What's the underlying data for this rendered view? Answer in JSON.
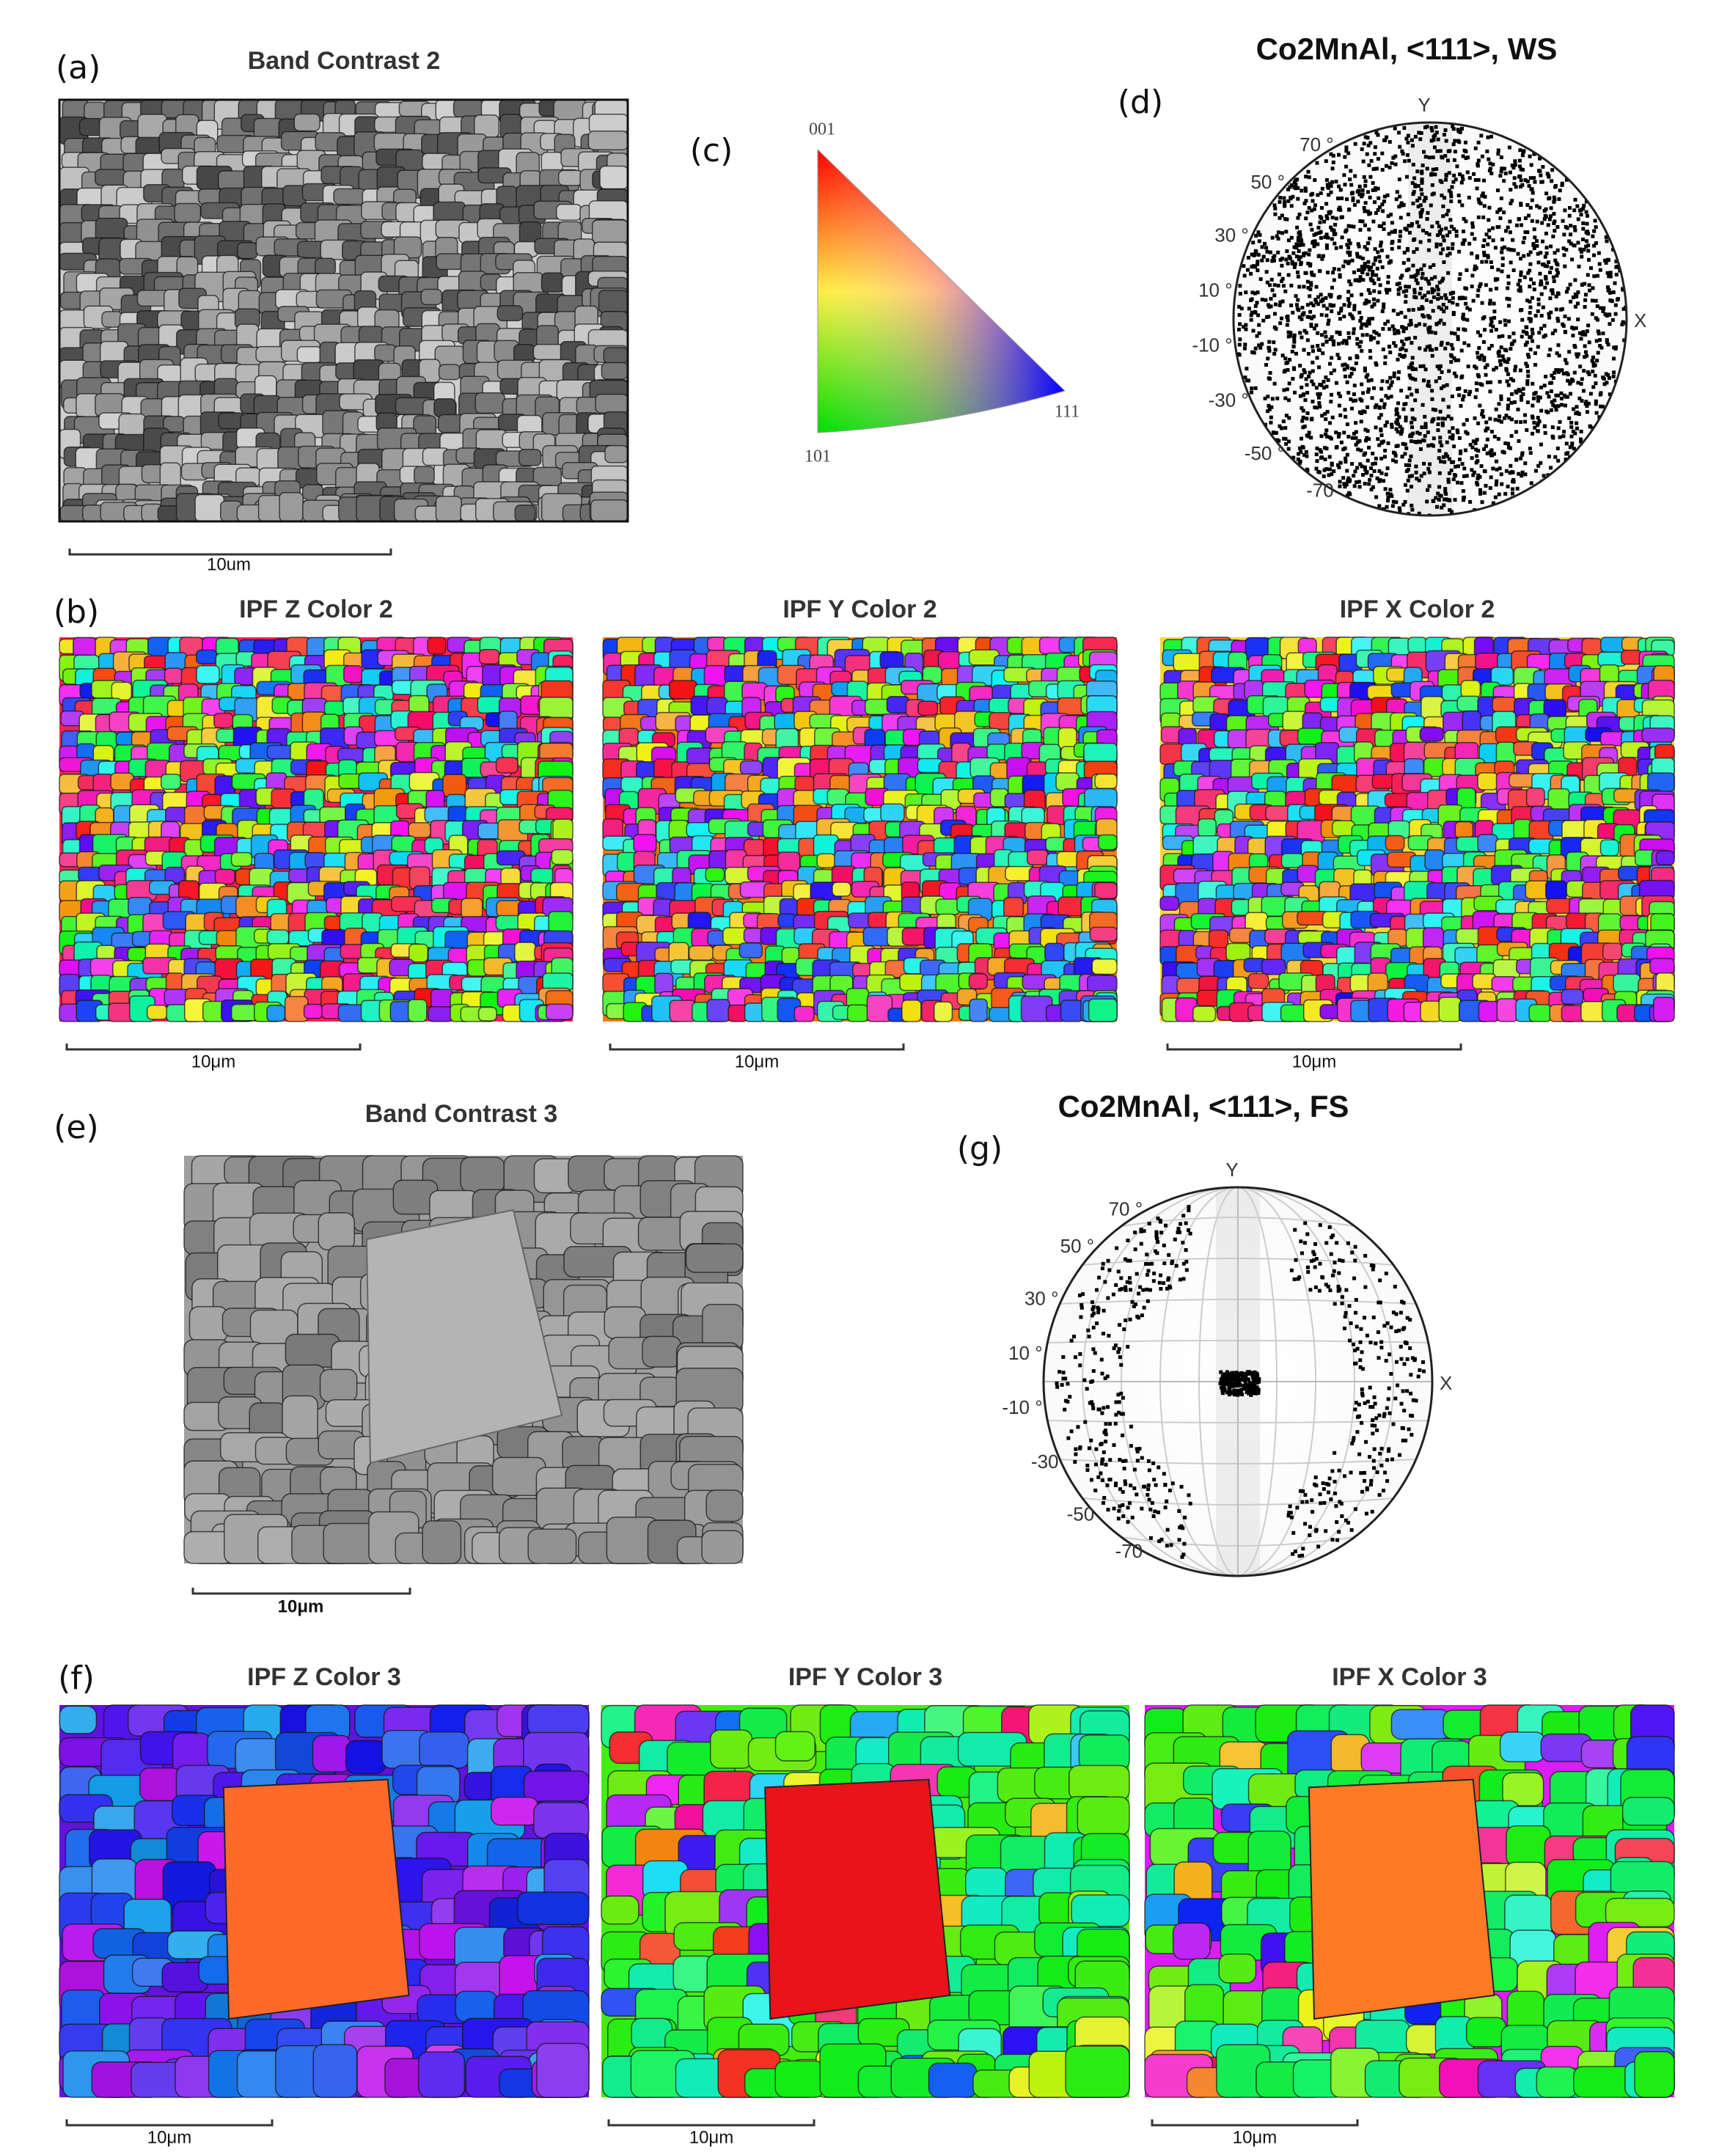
{
  "panels": {
    "a": {
      "label": "(a)",
      "title": "Band Contrast 2",
      "scale_bar": "10um"
    },
    "b": {
      "label": "(b)",
      "maps": [
        {
          "title": "IPF Z Color 2",
          "scale_bar": "10μm"
        },
        {
          "title": "IPF Y Color 2",
          "scale_bar": "10μm"
        },
        {
          "title": "IPF X Color 2",
          "scale_bar": "10μm"
        }
      ]
    },
    "c": {
      "label": "(c)",
      "corners": [
        "001",
        "101",
        "111"
      ]
    },
    "d": {
      "label": "(d)",
      "title": "Co2MnAl, <111>, WS",
      "axes": [
        "Y",
        "X"
      ],
      "angles": [
        "70 °",
        "50 °",
        "30 °",
        "10 °",
        "-10 °",
        "-30 °",
        "-50 °",
        "-70"
      ]
    },
    "e": {
      "label": "(e)",
      "title": "Band Contrast 3",
      "scale_bar": "10μm"
    },
    "f": {
      "label": "(f)",
      "maps": [
        {
          "title": "IPF Z Color 3",
          "scale_bar": "10μm"
        },
        {
          "title": "IPF Y Color 3",
          "scale_bar": "10μm"
        },
        {
          "title": "IPF X Color 3",
          "scale_bar": "10μm"
        }
      ]
    },
    "g": {
      "label": "(g)",
      "title": "Co2MnAl, <111>, FS",
      "axes": [
        "Y",
        "X"
      ],
      "angles": [
        "70 °",
        "50 °",
        "30 °",
        "10 °",
        "-10 °",
        "-30",
        "-50",
        "-70"
      ]
    }
  }
}
